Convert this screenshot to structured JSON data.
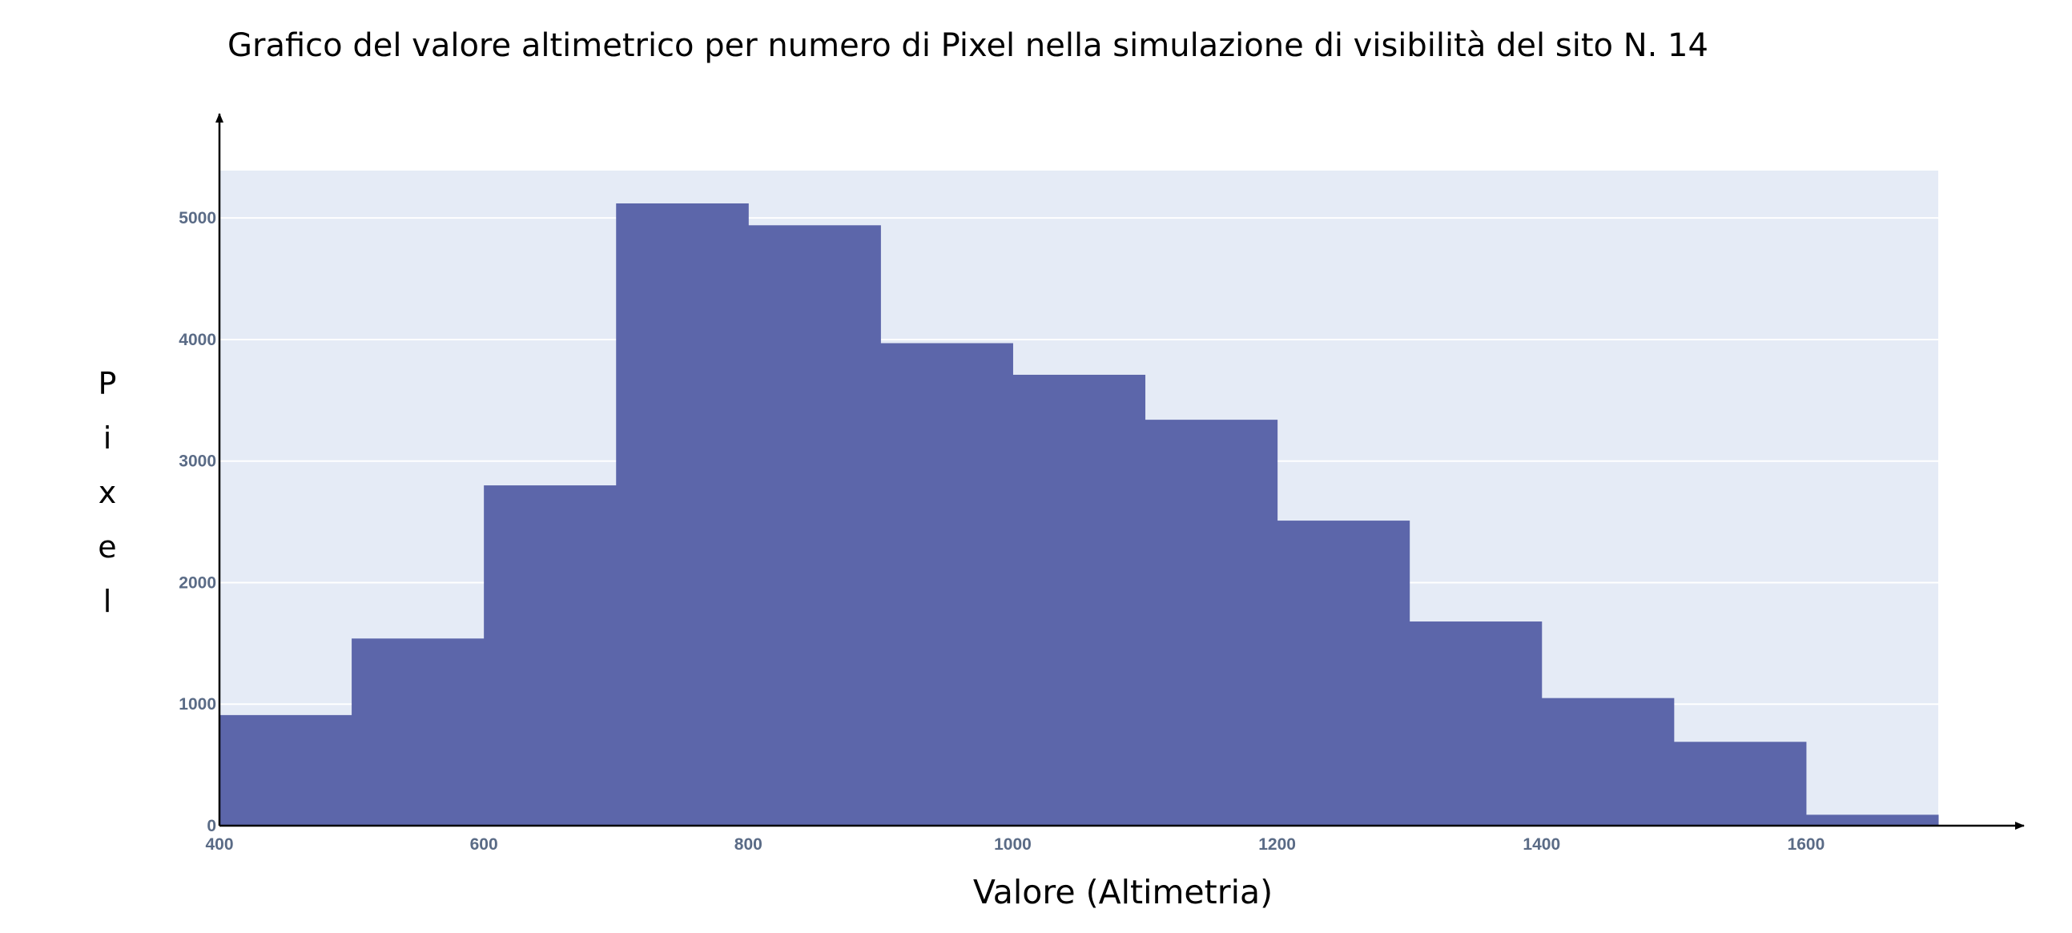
{
  "chart_data": {
    "type": "bar",
    "subtype": "histogram",
    "title": "Grafico del valore altimetrico per numero di Pixel nella simulazione di visibilità del sito N. 14",
    "xlabel": "Valore (Altimetria)",
    "ylabel": "Pixel",
    "bin_edges": [
      400,
      500,
      600,
      700,
      800,
      900,
      1000,
      1100,
      1200,
      1300,
      1400,
      1500,
      1600,
      1700
    ],
    "values": [
      910,
      1540,
      2800,
      5120,
      4940,
      3970,
      3710,
      3340,
      2510,
      1680,
      1050,
      690,
      90
    ],
    "xlim": [
      400,
      1700
    ],
    "ylim": [
      0,
      5390
    ],
    "xticks": [
      400,
      600,
      800,
      1000,
      1200,
      1400,
      1600
    ],
    "yticks": [
      0,
      1000,
      2000,
      3000,
      4000,
      5000
    ],
    "grid": true,
    "colors": {
      "bar": "#5c66aa",
      "plot_bg": "#e5ebf6",
      "grid": "#ffffff",
      "tick_text": "#5a6b86",
      "axis": "#000000"
    }
  }
}
